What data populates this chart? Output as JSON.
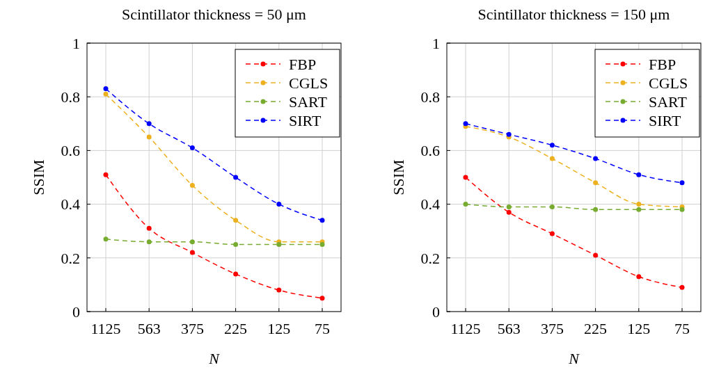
{
  "chart_data": [
    {
      "type": "line",
      "title": "Scintillator thickness = 50 μm",
      "xlabel": "N",
      "ylabel": "SSIM",
      "categories": [
        "1125",
        "563",
        "375",
        "225",
        "125",
        "75"
      ],
      "ylim": [
        0,
        1
      ],
      "yticks": [
        0,
        0.2,
        0.4,
        0.6,
        0.8,
        1
      ],
      "grid": true,
      "legend": "top right",
      "marker": "circle",
      "line_style": "dashed",
      "series": [
        {
          "name": "FBP",
          "color": "#ff0000",
          "values": [
            0.51,
            0.31,
            0.22,
            0.14,
            0.08,
            0.05
          ]
        },
        {
          "name": "CGLS",
          "color": "#edb120",
          "values": [
            0.81,
            0.65,
            0.47,
            0.34,
            0.26,
            0.26
          ]
        },
        {
          "name": "SART",
          "color": "#77ac30",
          "values": [
            0.27,
            0.26,
            0.26,
            0.25,
            0.25,
            0.25
          ]
        },
        {
          "name": "SIRT",
          "color": "#0000ff",
          "values": [
            0.83,
            0.7,
            0.61,
            0.5,
            0.4,
            0.34
          ]
        }
      ]
    },
    {
      "type": "line",
      "title": "Scintillator thickness = 150 μm",
      "xlabel": "N",
      "ylabel": "SSIM",
      "categories": [
        "1125",
        "563",
        "375",
        "225",
        "125",
        "75"
      ],
      "ylim": [
        0,
        1
      ],
      "yticks": [
        0,
        0.2,
        0.4,
        0.6,
        0.8,
        1
      ],
      "grid": true,
      "legend": "top right",
      "marker": "circle",
      "line_style": "dashed",
      "series": [
        {
          "name": "FBP",
          "color": "#ff0000",
          "values": [
            0.5,
            0.37,
            0.29,
            0.21,
            0.13,
            0.09
          ]
        },
        {
          "name": "CGLS",
          "color": "#edb120",
          "values": [
            0.69,
            0.65,
            0.57,
            0.48,
            0.4,
            0.39
          ]
        },
        {
          "name": "SART",
          "color": "#77ac30",
          "values": [
            0.4,
            0.39,
            0.39,
            0.38,
            0.38,
            0.38
          ]
        },
        {
          "name": "SIRT",
          "color": "#0000ff",
          "values": [
            0.7,
            0.66,
            0.62,
            0.57,
            0.51,
            0.48
          ]
        }
      ]
    }
  ]
}
